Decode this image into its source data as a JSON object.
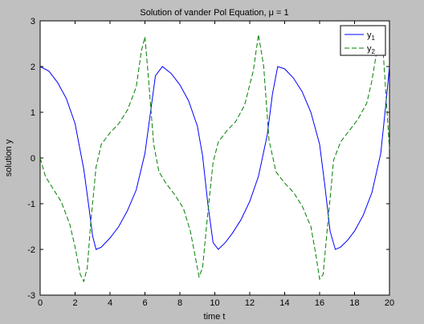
{
  "chart_data": {
    "type": "line",
    "title": "Solution of vander Pol Equation, μ = 1",
    "xlabel": "time t",
    "ylabel": "solution y",
    "xlim": [
      0,
      20
    ],
    "ylim": [
      -3,
      3
    ],
    "xticks": [
      0,
      2,
      4,
      6,
      8,
      10,
      12,
      14,
      16,
      18,
      20
    ],
    "xtick_labels": [
      "0",
      "2",
      "4",
      "6",
      "8",
      "10",
      "12",
      "14",
      "16",
      "18",
      "20"
    ],
    "yticks": [
      -3,
      -2,
      -1,
      0,
      1,
      2,
      3
    ],
    "ytick_labels": [
      "-3",
      "-2",
      "-1",
      "0",
      "1",
      "2",
      "3"
    ],
    "grid": false,
    "legend_position": "top-right",
    "series": [
      {
        "name": "y1",
        "legend_main": "y",
        "legend_sub": "1",
        "color": "#0000ff",
        "style": "solid",
        "x": [
          0,
          0.5,
          1.0,
          1.5,
          2.0,
          2.5,
          2.8,
          3.0,
          3.2,
          3.5,
          4.0,
          4.5,
          5.0,
          5.5,
          6.0,
          6.3,
          6.6,
          7.0,
          7.5,
          8.0,
          8.5,
          9.0,
          9.3,
          9.6,
          9.9,
          10.2,
          10.6,
          11.0,
          11.5,
          12.0,
          12.5,
          13.0,
          13.3,
          13.6,
          14.0,
          14.5,
          15.0,
          15.5,
          16.0,
          16.3,
          16.6,
          16.9,
          17.2,
          17.6,
          18.0,
          18.5,
          19.0,
          19.5,
          19.8,
          20.0
        ],
        "y": [
          2.0,
          1.9,
          1.65,
          1.3,
          0.75,
          -0.25,
          -1.1,
          -1.7,
          -2.0,
          -1.95,
          -1.75,
          -1.5,
          -1.15,
          -0.7,
          0.1,
          0.95,
          1.8,
          2.0,
          1.85,
          1.6,
          1.25,
          0.7,
          0.05,
          -1.0,
          -1.85,
          -2.0,
          -1.85,
          -1.65,
          -1.35,
          -0.95,
          -0.4,
          0.5,
          1.4,
          2.0,
          1.95,
          1.75,
          1.45,
          1.0,
          0.3,
          -0.6,
          -1.6,
          -2.0,
          -1.95,
          -1.8,
          -1.6,
          -1.25,
          -0.75,
          0.1,
          1.2,
          2.0
        ]
      },
      {
        "name": "y2",
        "legend_main": "y",
        "legend_sub": "2",
        "color": "#007f00",
        "style": "dashed",
        "x": [
          0,
          0.3,
          0.7,
          1.2,
          1.7,
          2.0,
          2.3,
          2.5,
          2.7,
          2.9,
          3.2,
          3.5,
          4.0,
          4.5,
          5.0,
          5.5,
          5.8,
          6.0,
          6.2,
          6.5,
          6.8,
          7.2,
          7.7,
          8.2,
          8.6,
          8.9,
          9.1,
          9.3,
          9.6,
          9.9,
          10.2,
          10.7,
          11.2,
          11.7,
          12.2,
          12.5,
          12.8,
          13.1,
          13.5,
          14.0,
          14.5,
          15.0,
          15.5,
          15.8,
          16.0,
          16.2,
          16.5,
          16.8,
          17.2,
          17.7,
          18.2,
          18.7,
          19.0,
          19.3,
          19.6,
          20.0
        ],
        "y": [
          0.0,
          -0.4,
          -0.65,
          -0.95,
          -1.45,
          -1.95,
          -2.55,
          -2.7,
          -2.4,
          -1.4,
          -0.2,
          0.3,
          0.55,
          0.75,
          1.05,
          1.55,
          2.35,
          2.65,
          1.75,
          0.3,
          -0.3,
          -0.55,
          -0.8,
          -1.1,
          -1.6,
          -2.2,
          -2.6,
          -2.4,
          -1.2,
          -0.1,
          0.35,
          0.6,
          0.8,
          1.15,
          1.9,
          2.7,
          2.0,
          0.4,
          -0.3,
          -0.55,
          -0.75,
          -1.05,
          -1.5,
          -2.15,
          -2.65,
          -2.55,
          -1.3,
          -0.05,
          0.35,
          0.6,
          0.85,
          1.2,
          1.7,
          2.4,
          2.55,
          0.2
        ]
      }
    ]
  }
}
